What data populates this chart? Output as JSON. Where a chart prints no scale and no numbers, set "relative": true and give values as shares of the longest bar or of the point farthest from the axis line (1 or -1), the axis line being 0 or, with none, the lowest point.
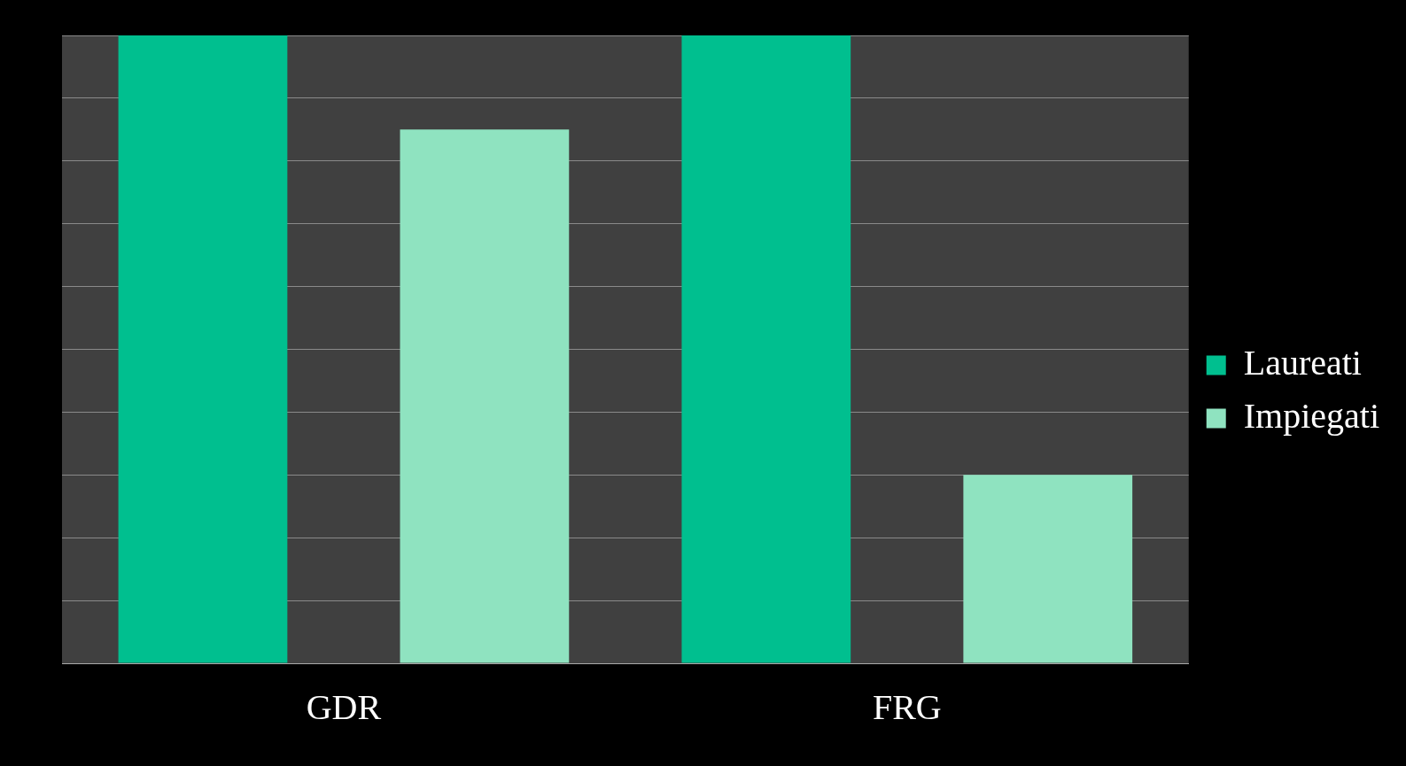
{
  "chart_data": {
    "type": "bar",
    "relative": true,
    "categories": [
      "GDR",
      "FRG"
    ],
    "series": [
      {
        "name": "Laureati",
        "color": "#00bf8f",
        "values": [
          1,
          1
        ]
      },
      {
        "name": "Impiegati",
        "color": "#8fe3c0",
        "values": [
          0.85,
          0.3
        ]
      }
    ],
    "grid": "y",
    "legend": "right"
  }
}
